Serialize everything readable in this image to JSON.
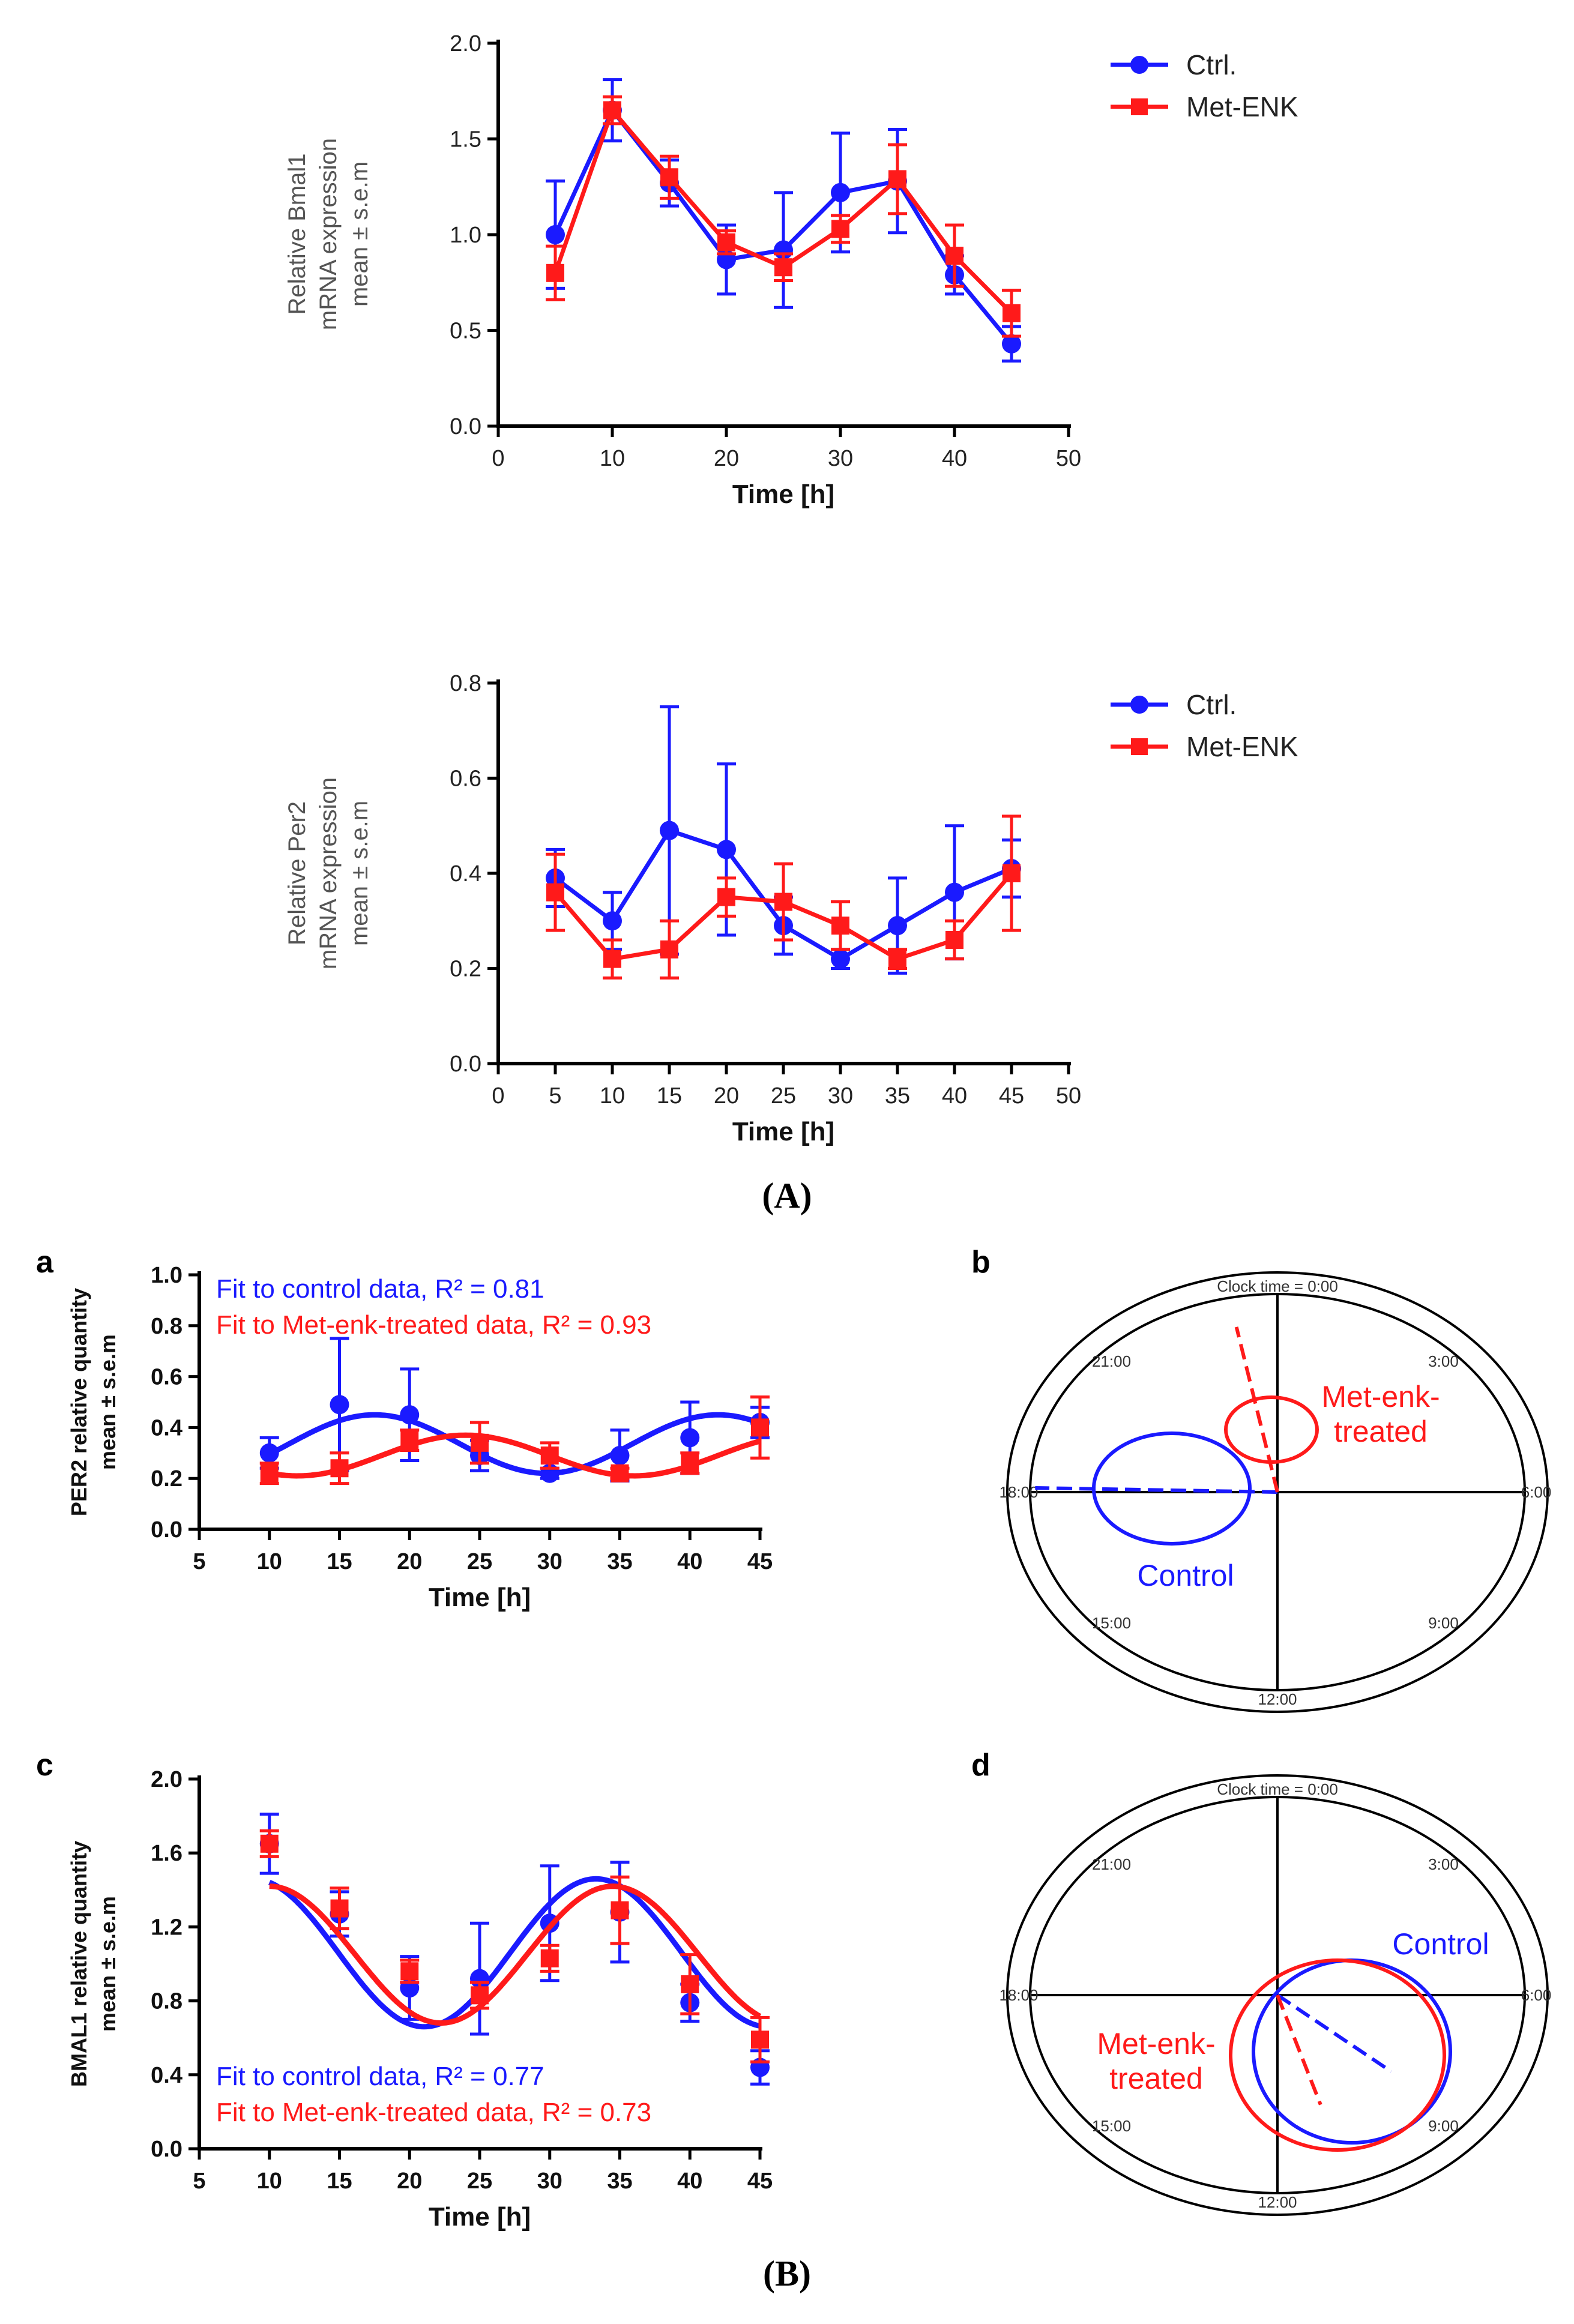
{
  "colors": {
    "ctrl": "#1a1aff",
    "met": "#ff1a1a",
    "axis": "#000000"
  },
  "panel_A_label": "(A)",
  "panel_B_label": "(B)",
  "chart_data": [
    {
      "id": "A1",
      "type": "line",
      "title": "",
      "xlabel": "Time [h]",
      "ylabel_lines": [
        "Relative Bmal1",
        "mRNA expression",
        "mean ± s.e.m"
      ],
      "xlim": [
        0,
        50
      ],
      "ylim": [
        0,
        2.0
      ],
      "xticks": [
        "0",
        "10",
        "20",
        "30",
        "40",
        "50"
      ],
      "xtick_values": [
        0,
        10,
        20,
        30,
        40,
        50
      ],
      "yticks": [
        "0.0",
        "0.5",
        "1.0",
        "1.5",
        "2.0"
      ],
      "ytick_values": [
        0,
        0.5,
        1.0,
        1.5,
        2.0
      ],
      "legend_position": "top-right",
      "series": [
        {
          "name": "Ctrl.",
          "marker": "circle",
          "x": [
            5,
            10,
            15,
            20,
            25,
            30,
            35,
            40,
            45
          ],
          "values": [
            1.0,
            1.65,
            1.27,
            0.87,
            0.92,
            1.22,
            1.28,
            0.79,
            0.43
          ],
          "err": [
            0.28,
            0.16,
            0.12,
            0.18,
            0.3,
            0.31,
            0.27,
            0.1,
            0.09
          ]
        },
        {
          "name": "Met-ENK",
          "marker": "square",
          "x": [
            5,
            10,
            15,
            20,
            25,
            30,
            35,
            40,
            45
          ],
          "values": [
            0.8,
            1.65,
            1.3,
            0.96,
            0.83,
            1.03,
            1.29,
            0.89,
            0.59
          ],
          "err": [
            0.14,
            0.07,
            0.11,
            0.06,
            0.07,
            0.07,
            0.18,
            0.16,
            0.12
          ]
        }
      ]
    },
    {
      "id": "A2",
      "type": "line",
      "title": "",
      "xlabel": "Time [h]",
      "ylabel_lines": [
        "Relative Per2",
        "mRNA expression",
        "mean ± s.e.m"
      ],
      "xlim": [
        0,
        50
      ],
      "ylim": [
        0,
        0.8
      ],
      "xticks": [
        "0",
        "5",
        "10",
        "15",
        "20",
        "25",
        "30",
        "35",
        "40",
        "45",
        "50"
      ],
      "xtick_values": [
        0,
        5,
        10,
        15,
        20,
        25,
        30,
        35,
        40,
        45,
        50
      ],
      "yticks": [
        "0.0",
        "0.2",
        "0.4",
        "0.6",
        "0.8"
      ],
      "ytick_values": [
        0,
        0.2,
        0.4,
        0.6,
        0.8
      ],
      "legend_position": "top-right",
      "series": [
        {
          "name": "Ctrl.",
          "marker": "circle",
          "x": [
            5,
            10,
            15,
            20,
            25,
            30,
            35,
            40,
            45
          ],
          "values": [
            0.39,
            0.3,
            0.49,
            0.45,
            0.29,
            0.22,
            0.29,
            0.36,
            0.41
          ],
          "err": [
            0.06,
            0.06,
            0.26,
            0.18,
            0.06,
            0.02,
            0.1,
            0.14,
            0.06
          ]
        },
        {
          "name": "Met-ENK",
          "marker": "square",
          "x": [
            5,
            10,
            15,
            20,
            25,
            30,
            35,
            40,
            45
          ],
          "values": [
            0.36,
            0.22,
            0.24,
            0.35,
            0.34,
            0.29,
            0.22,
            0.26,
            0.4
          ],
          "err": [
            0.08,
            0.04,
            0.06,
            0.04,
            0.08,
            0.05,
            0.02,
            0.04,
            0.12
          ]
        }
      ]
    },
    {
      "id": "Ba",
      "type": "line",
      "panel_letter": "a",
      "xlabel": "Time [h]",
      "ylabel_lines": [
        "PER2 relative quantity",
        "mean ± s.e.m"
      ],
      "xlim": [
        5,
        45
      ],
      "ylim": [
        0,
        1.0
      ],
      "xticks": [
        "5",
        "10",
        "15",
        "20",
        "25",
        "30",
        "35",
        "40",
        "45"
      ],
      "xtick_values": [
        5,
        10,
        15,
        20,
        25,
        30,
        35,
        40,
        45
      ],
      "yticks": [
        "0.0",
        "0.2",
        "0.4",
        "0.6",
        "0.8",
        "1.0"
      ],
      "ytick_values": [
        0,
        0.2,
        0.4,
        0.6,
        0.8,
        1.0
      ],
      "annotations": [
        "Fit to control data, R² = 0.81",
        "Fit to Met-enk-treated data, R² = 0.93"
      ],
      "series": [
        {
          "name": "Control",
          "marker": "circle",
          "x": [
            10,
            15,
            20,
            25,
            30,
            35,
            40,
            45
          ],
          "values": [
            0.3,
            0.49,
            0.45,
            0.29,
            0.22,
            0.29,
            0.36,
            0.42
          ],
          "err": [
            0.06,
            0.26,
            0.18,
            0.06,
            0.02,
            0.1,
            0.14,
            0.06
          ],
          "fit": {
            "mesor": 0.335,
            "amp": 0.115,
            "period": 24.5,
            "peak": 17.5,
            "xmin": 10,
            "xmax": 45
          }
        },
        {
          "name": "Met-enk-treated",
          "marker": "square",
          "x": [
            10,
            15,
            20,
            25,
            30,
            35,
            40,
            45
          ],
          "values": [
            0.22,
            0.24,
            0.35,
            0.34,
            0.29,
            0.22,
            0.26,
            0.4
          ],
          "err": [
            0.04,
            0.06,
            0.04,
            0.08,
            0.05,
            0.02,
            0.04,
            0.12
          ],
          "fit": {
            "mesor": 0.29,
            "amp": 0.08,
            "period": 24.0,
            "peak": 24.0,
            "xmin": 10,
            "xmax": 45
          }
        }
      ]
    },
    {
      "id": "Bc",
      "type": "line",
      "panel_letter": "c",
      "xlabel": "Time [h]",
      "ylabel_lines": [
        "BMAL1 relative quantity",
        "mean ± s.e.m"
      ],
      "xlim": [
        5,
        45
      ],
      "ylim": [
        0,
        2.0
      ],
      "xticks": [
        "5",
        "10",
        "15",
        "20",
        "25",
        "30",
        "35",
        "40",
        "45"
      ],
      "xtick_values": [
        5,
        10,
        15,
        20,
        25,
        30,
        35,
        40,
        45
      ],
      "yticks": [
        "0.0",
        "0.4",
        "0.8",
        "1.2",
        "1.6",
        "2.0"
      ],
      "ytick_values": [
        0,
        0.4,
        0.8,
        1.2,
        1.6,
        2.0
      ],
      "annotations": [
        "Fit to control data, R² = 0.77",
        "Fit to Met-enk-treated data, R² = 0.73"
      ],
      "series": [
        {
          "name": "Control",
          "marker": "circle",
          "x": [
            10,
            15,
            20,
            25,
            30,
            35,
            40,
            45
          ],
          "values": [
            1.65,
            1.27,
            0.87,
            0.92,
            1.22,
            1.28,
            0.79,
            0.44
          ],
          "err": [
            0.16,
            0.12,
            0.17,
            0.3,
            0.31,
            0.27,
            0.1,
            0.09
          ],
          "fit": {
            "mesor": 1.06,
            "amp": 0.4,
            "period": 24.5,
            "peak": 33.3,
            "xmin": 10,
            "xmax": 45
          }
        },
        {
          "name": "Met-enk-treated",
          "marker": "square",
          "x": [
            10,
            15,
            20,
            25,
            30,
            35,
            40,
            45
          ],
          "values": [
            1.65,
            1.3,
            0.96,
            0.83,
            1.03,
            1.29,
            0.89,
            0.59
          ],
          "err": [
            0.07,
            0.11,
            0.06,
            0.07,
            0.07,
            0.18,
            0.16,
            0.12
          ],
          "fit": {
            "mesor": 1.05,
            "amp": 0.37,
            "period": 24.5,
            "peak": 34.5,
            "xmin": 10,
            "xmax": 45
          }
        }
      ]
    },
    {
      "id": "Bb",
      "type": "polar",
      "panel_letter": "b",
      "clock_title": "Clock time = 0:00",
      "hour_labels": [
        "3:00",
        "6:00",
        "9:00",
        "12:00",
        "15:00",
        "18:00",
        "21:00"
      ],
      "ellipse_labels": {
        "control": "Control",
        "met_line1": "Met-enk-",
        "met_line2": "treated"
      },
      "vectors": [
        {
          "name": "Control",
          "acrophase_clock": "18:05",
          "relative_amplitude": 0.98
        },
        {
          "name": "Met-enk-treated",
          "acrophase_clock": "23:15",
          "relative_amplitude": 0.85
        }
      ]
    },
    {
      "id": "Bd",
      "type": "polar",
      "panel_letter": "d",
      "clock_title": "Clock time = 0:00",
      "hour_labels": [
        "3:00",
        "6:00",
        "9:00",
        "12:00",
        "15:00",
        "18:00",
        "21:00"
      ],
      "ellipse_labels": {
        "control": "Control",
        "met_line1": "Met-enk-",
        "met_line2": "treated"
      },
      "vectors": [
        {
          "name": "Control",
          "acrophase_clock": "8:40",
          "relative_amplitude": 0.6
        },
        {
          "name": "Met-enk-treated",
          "acrophase_clock": "10:50",
          "relative_amplitude": 0.58
        }
      ]
    }
  ]
}
